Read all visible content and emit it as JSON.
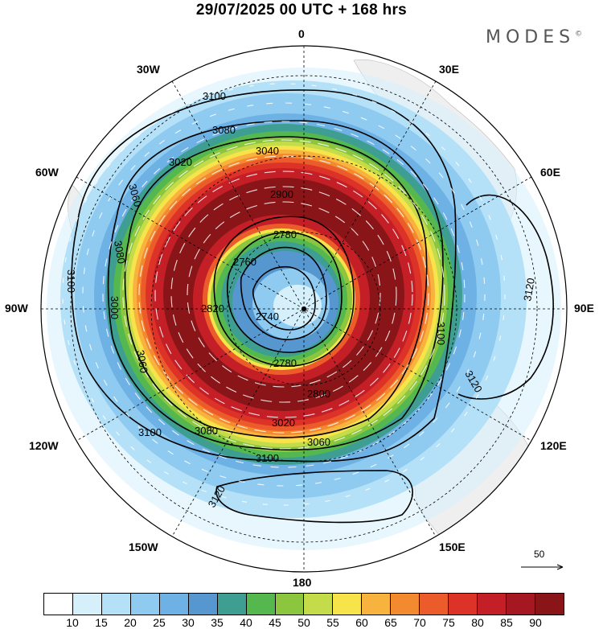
{
  "title": "29/07/2025  00 UTC  + 168 hrs",
  "logo": "MODES",
  "logo_mark": "©",
  "longitude_labels": {
    "n": "0",
    "s": "180",
    "e": "90E",
    "w": "90W",
    "ne30": "30E",
    "nw30": "30W",
    "ne60": "60E",
    "nw60": "60W",
    "se120": "120E",
    "sw120": "120W",
    "se150": "150E",
    "sw150": "150W"
  },
  "contour_labels": [
    "3100",
    "3080",
    "3060",
    "3040",
    "3020",
    "2800",
    "2780",
    "2760",
    "2740",
    "2820",
    "2900",
    "3000",
    "3120",
    "3060",
    "3080",
    "3100"
  ],
  "vector_scale_label": "50",
  "colorbar": {
    "colors": [
      "#ffffff",
      "#d6f0fb",
      "#b4e1f7",
      "#8fcbf0",
      "#6eb2e5",
      "#5797d0",
      "#3f9e92",
      "#55b84f",
      "#8cc63f",
      "#c4dc4a",
      "#f6e44a",
      "#f8b33f",
      "#f48a30",
      "#ec5b2a",
      "#dd3228",
      "#c41f27",
      "#a51822",
      "#8a1519"
    ],
    "labels": [
      "10",
      "15",
      "20",
      "25",
      "30",
      "35",
      "40",
      "45",
      "50",
      "55",
      "60",
      "65",
      "70",
      "75",
      "80",
      "85",
      "90"
    ]
  }
}
